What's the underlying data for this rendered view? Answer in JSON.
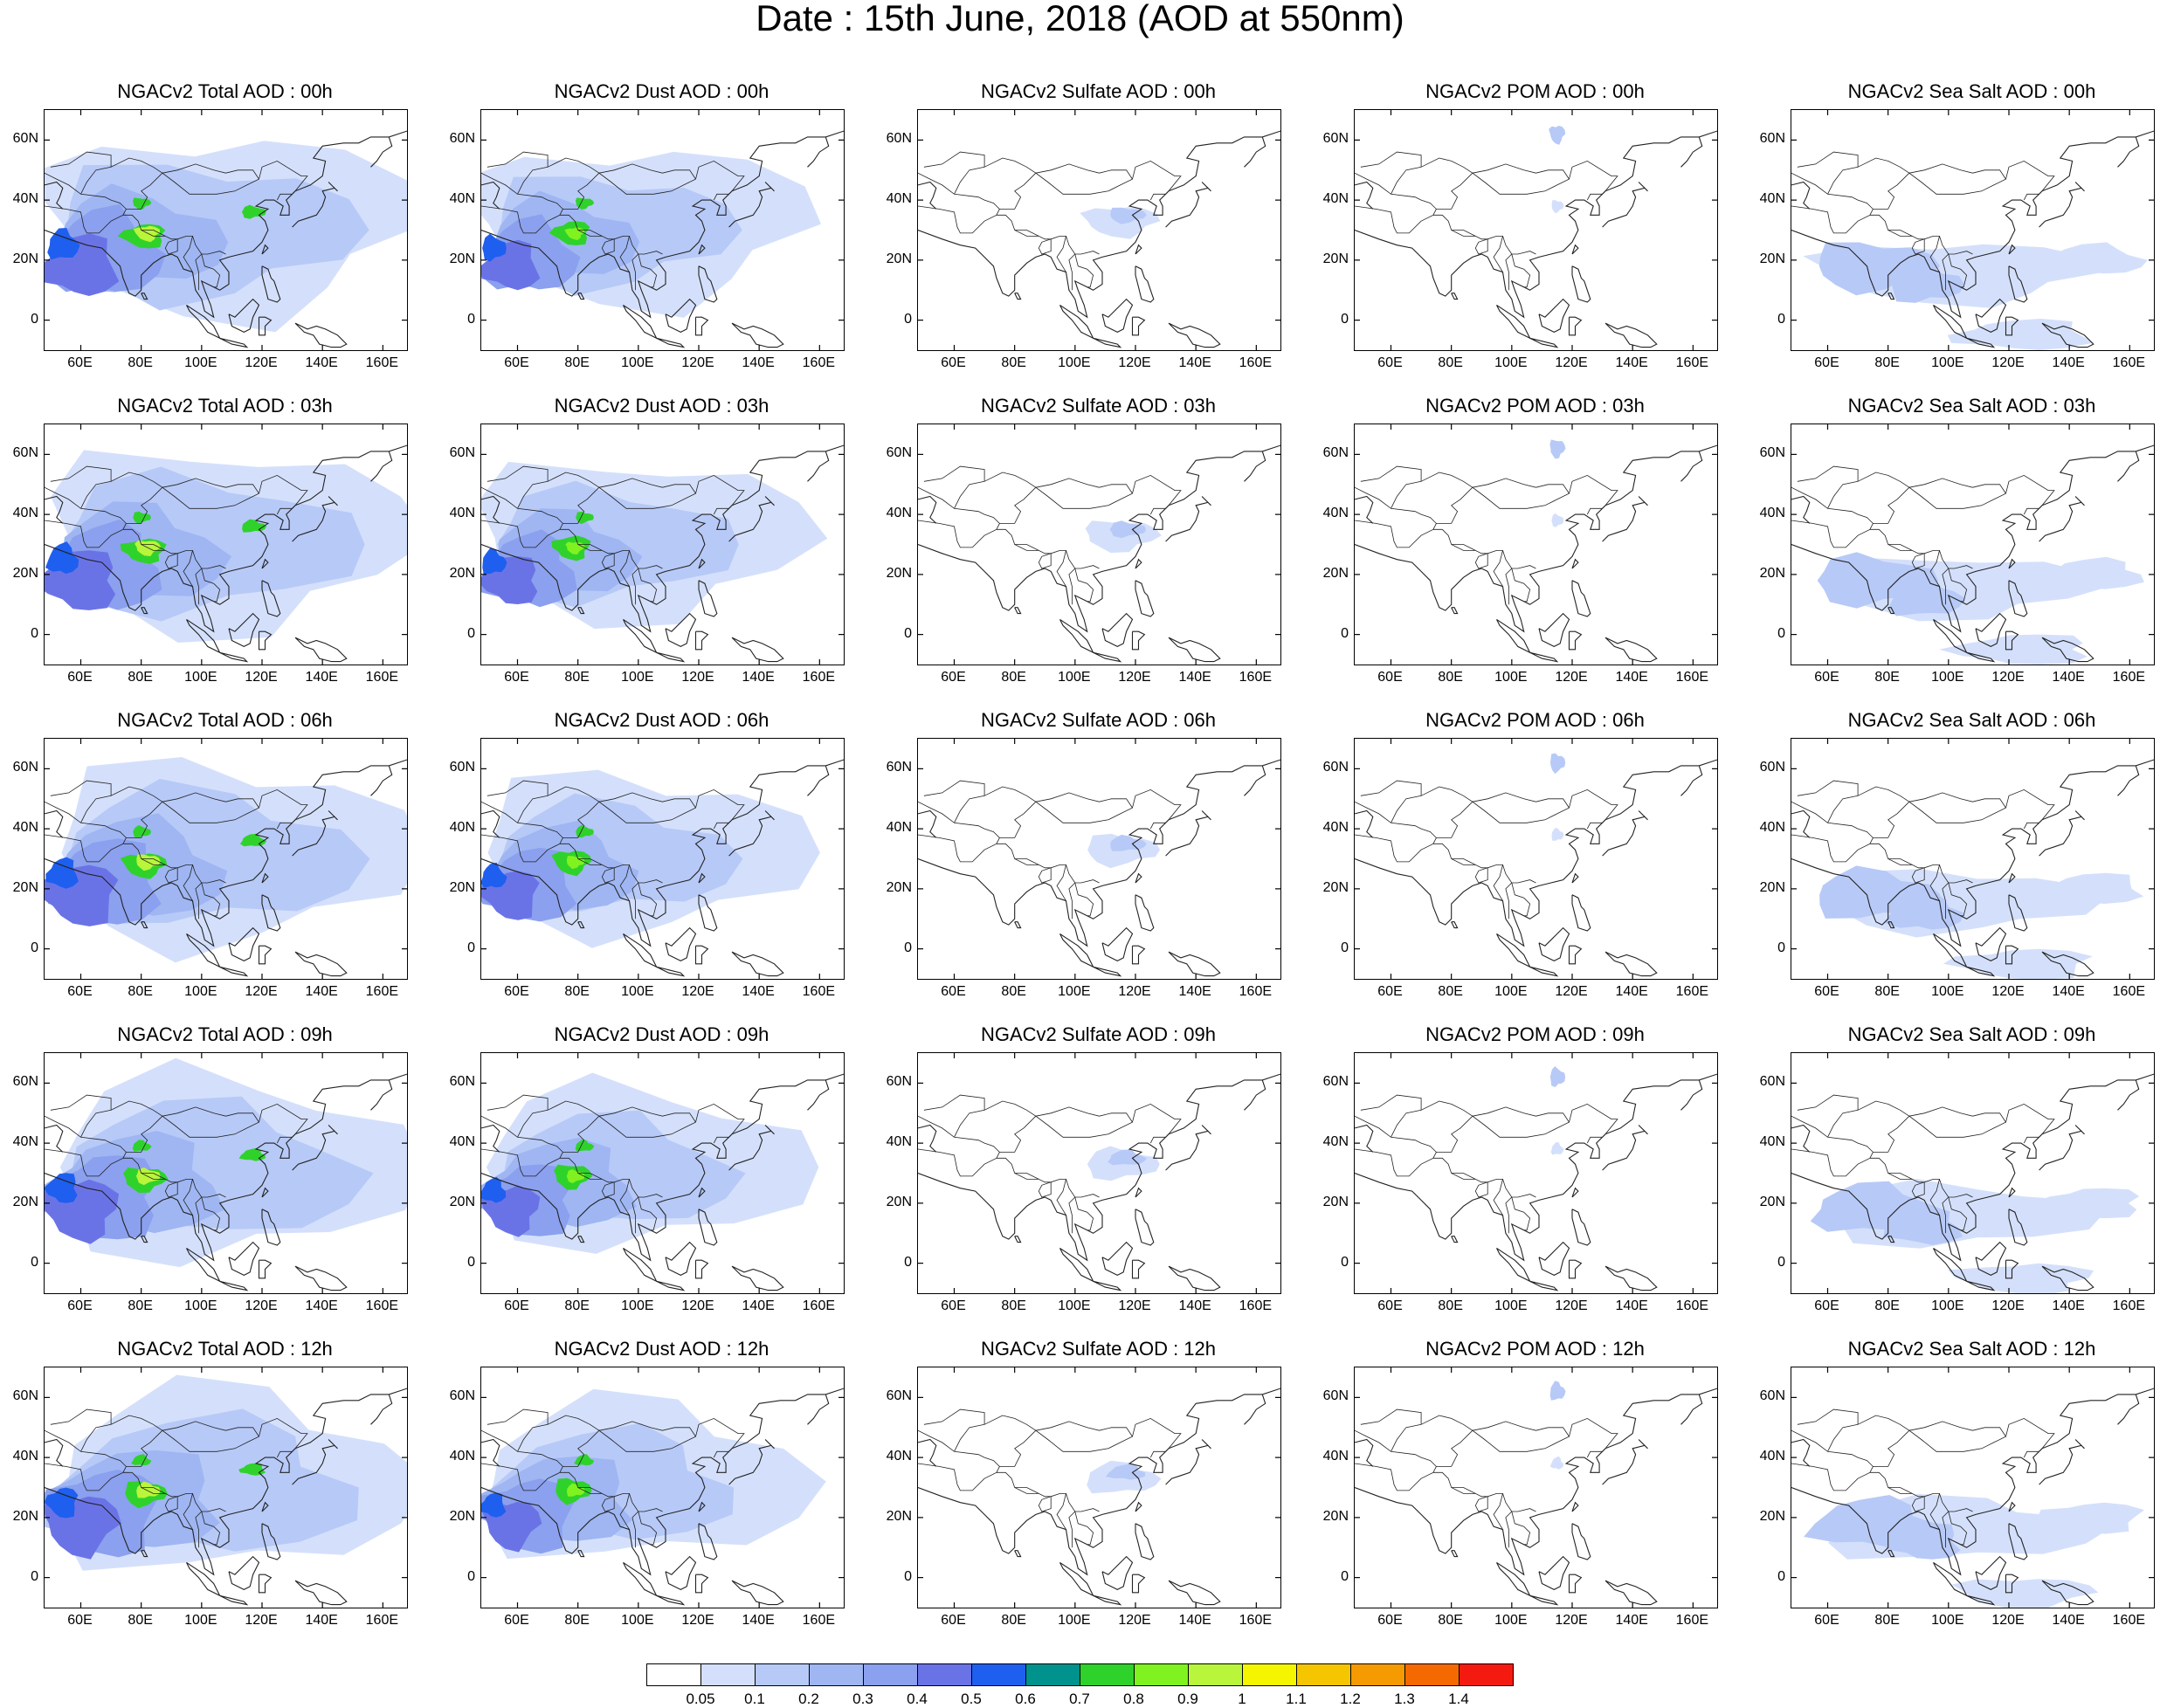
{
  "title": "Date : 15th June, 2018 (AOD at 550nm)",
  "x_ticks": [
    "60E",
    "80E",
    "100E",
    "120E",
    "140E",
    "160E"
  ],
  "y_ticks": [
    "60N",
    "40N",
    "20N",
    "0"
  ],
  "panels": [
    [
      {
        "title": "NGACv2 Total AOD : 00h",
        "species": "total",
        "hour": "00h"
      },
      {
        "title": "NGACv2 Dust AOD : 00h",
        "species": "dust",
        "hour": "00h"
      },
      {
        "title": "NGACv2 Sulfate AOD : 00h",
        "species": "sulfate",
        "hour": "00h"
      },
      {
        "title": "NGACv2 POM AOD : 00h",
        "species": "pom",
        "hour": "00h"
      },
      {
        "title": "NGACv2 Sea Salt AOD : 00h",
        "species": "seasalt",
        "hour": "00h"
      }
    ],
    [
      {
        "title": "NGACv2 Total AOD : 03h",
        "species": "total",
        "hour": "03h"
      },
      {
        "title": "NGACv2 Dust AOD : 03h",
        "species": "dust",
        "hour": "03h"
      },
      {
        "title": "NGACv2 Sulfate AOD : 03h",
        "species": "sulfate",
        "hour": "03h"
      },
      {
        "title": "NGACv2 POM AOD : 03h",
        "species": "pom",
        "hour": "03h"
      },
      {
        "title": "NGACv2 Sea Salt AOD : 03h",
        "species": "seasalt",
        "hour": "03h"
      }
    ],
    [
      {
        "title": "NGACv2 Total AOD : 06h",
        "species": "total",
        "hour": "06h"
      },
      {
        "title": "NGACv2 Dust AOD : 06h",
        "species": "dust",
        "hour": "06h"
      },
      {
        "title": "NGACv2 Sulfate AOD : 06h",
        "species": "sulfate",
        "hour": "06h"
      },
      {
        "title": "NGACv2 POM AOD : 06h",
        "species": "pom",
        "hour": "06h"
      },
      {
        "title": "NGACv2 Sea Salt AOD : 06h",
        "species": "seasalt",
        "hour": "06h"
      }
    ],
    [
      {
        "title": "NGACv2 Total AOD : 09h",
        "species": "total",
        "hour": "09h"
      },
      {
        "title": "NGACv2 Dust AOD : 09h",
        "species": "dust",
        "hour": "09h"
      },
      {
        "title": "NGACv2 Sulfate AOD : 09h",
        "species": "sulfate",
        "hour": "09h"
      },
      {
        "title": "NGACv2 POM AOD : 09h",
        "species": "pom",
        "hour": "09h"
      },
      {
        "title": "NGACv2 Sea Salt  AOD : 09h",
        "species": "seasalt",
        "hour": "09h"
      }
    ],
    [
      {
        "title": "NGACv2 Total AOD  : 12h",
        "species": "total",
        "hour": "12h"
      },
      {
        "title": "NGACv2 Dust AOD : 12h",
        "species": "dust",
        "hour": "12h"
      },
      {
        "title": "NGACv2 Sulfate AOD : 12h",
        "species": "sulfate",
        "hour": "12h"
      },
      {
        "title": "NGACv2 POM  AOD : 12h",
        "species": "pom",
        "hour": "12h"
      },
      {
        "title": "NGACv2 Sea Salt  AOD : 12h",
        "species": "seasalt",
        "hour": "12h"
      }
    ]
  ],
  "colorbar": {
    "labels": [
      "0.05",
      "0.1",
      "0.2",
      "0.3",
      "0.4",
      "0.5",
      "0.6",
      "0.7",
      "0.8",
      "0.9",
      "1",
      "1.1",
      "1.2",
      "1.3",
      "1.4"
    ],
    "colors": [
      "#ffffff",
      "#d4e0fb",
      "#b7c9f7",
      "#9fb6f3",
      "#8ba0ee",
      "#6a73e6",
      "#1e5fef",
      "#00928c",
      "#2fd22b",
      "#7ff21f",
      "#b9f53a",
      "#f5f500",
      "#f5c500",
      "#f59a00",
      "#f56a00",
      "#f51a10"
    ]
  }
}
